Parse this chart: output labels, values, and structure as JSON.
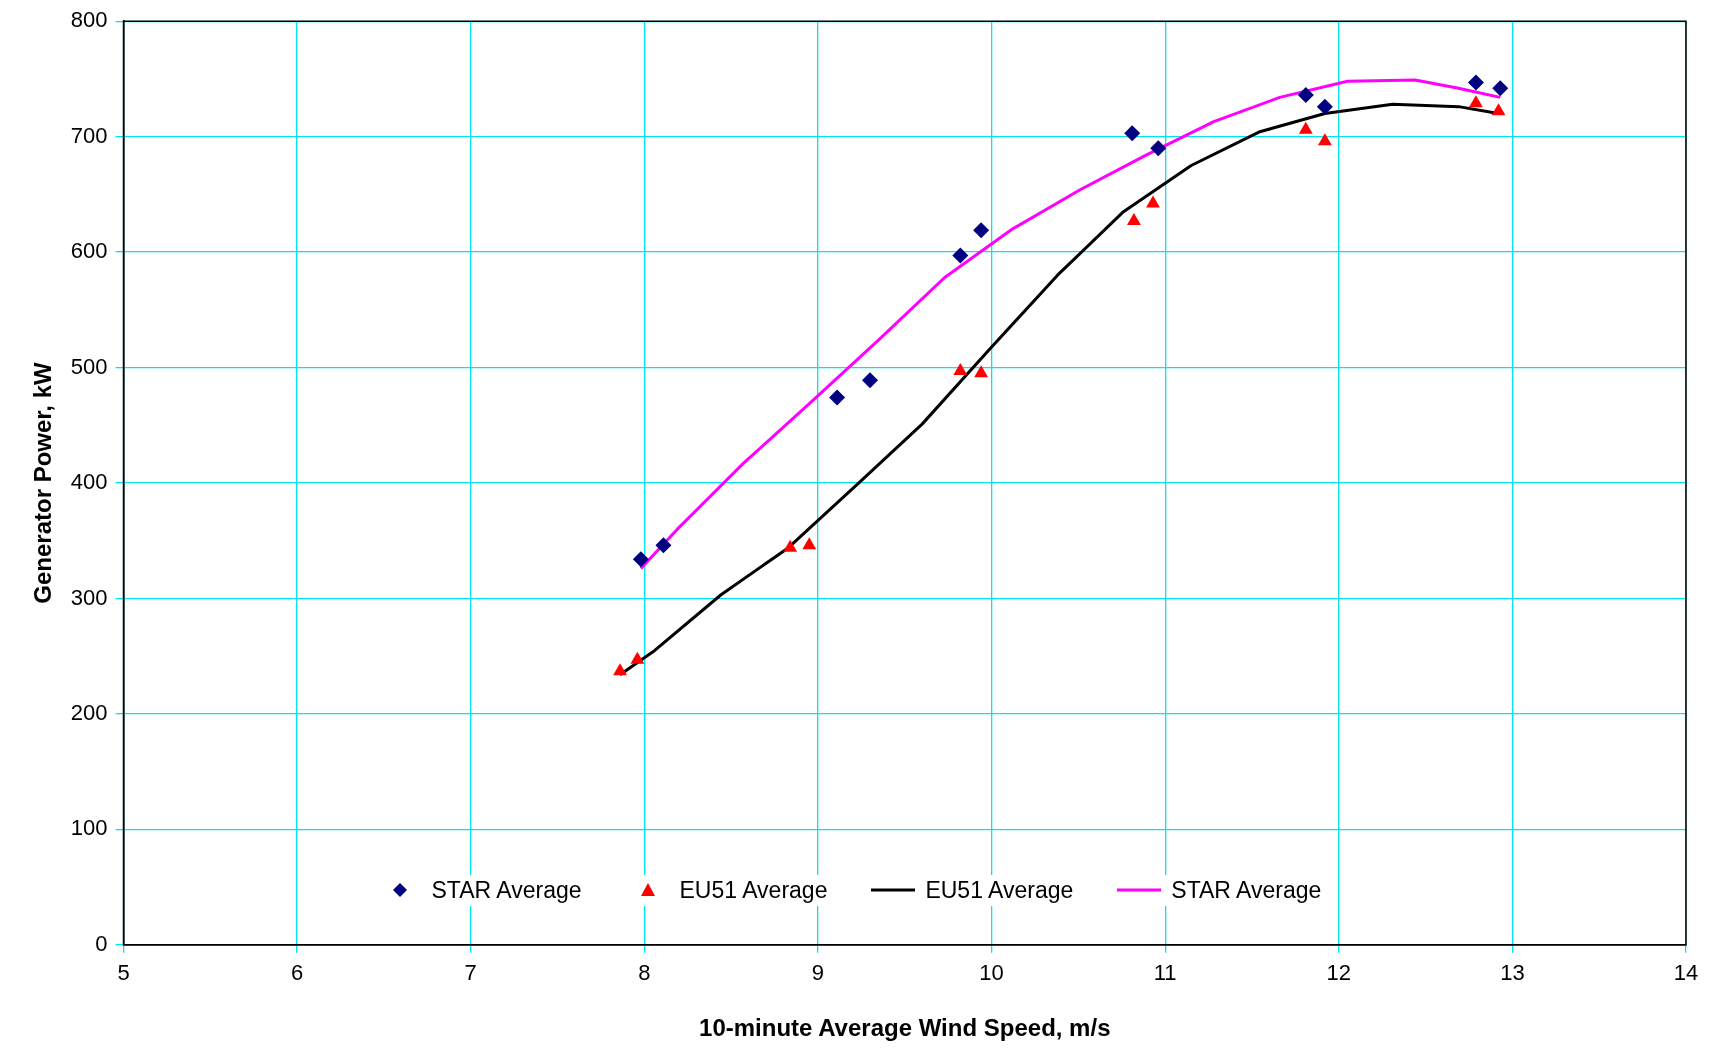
{
  "chart_data": {
    "type": "scatter",
    "xlabel": "10-minute Average Wind Speed, m/s",
    "ylabel": "Generator Power, kW",
    "xlim": [
      5,
      14
    ],
    "xticks": [
      5,
      6,
      7,
      8,
      9,
      10,
      11,
      12,
      13,
      14
    ],
    "ylim": [
      0,
      800
    ],
    "yticks": [
      0,
      100,
      200,
      300,
      400,
      500,
      600,
      700,
      800
    ],
    "grid": true,
    "legend": "bottom",
    "series": [
      {
        "name": "STAR Average",
        "marker": "diamond",
        "color": "#000080",
        "x": [
          7.98,
          8.11,
          9.11,
          9.3,
          9.82,
          9.94,
          10.81,
          10.96,
          11.81,
          11.92,
          12.79,
          12.93
        ],
        "values": [
          334,
          346,
          474,
          489,
          597,
          619,
          703,
          690,
          736,
          726,
          747,
          742
        ]
      },
      {
        "name": "EU51 Average",
        "marker": "triangle",
        "color": "#ff0000",
        "x": [
          7.86,
          7.96,
          8.84,
          8.95,
          9.82,
          9.94,
          10.82,
          10.93,
          11.81,
          11.92,
          12.79,
          12.92
        ],
        "values": [
          237,
          247,
          344,
          346,
          497,
          495,
          627,
          642,
          706,
          696,
          729,
          722
        ]
      },
      {
        "name": "EU51 Average",
        "type": "line",
        "marker": "none",
        "color": "#000000",
        "x": [
          7.86,
          8.06,
          8.44,
          8.83,
          9.22,
          9.6,
          9.99,
          10.38,
          10.76,
          11.15,
          11.54,
          11.92,
          12.31,
          12.69,
          12.92
        ],
        "values": [
          234,
          255,
          303,
          344,
          398,
          451,
          516,
          580,
          635,
          675,
          704,
          720,
          728,
          726,
          720
        ]
      },
      {
        "name": "STAR Average",
        "type": "line",
        "marker": "none",
        "color": "#ff00ff",
        "x": [
          7.98,
          8.19,
          8.57,
          8.96,
          9.35,
          9.73,
          10.12,
          10.51,
          10.89,
          11.28,
          11.66,
          12.05,
          12.44,
          12.69,
          12.93
        ],
        "values": [
          326,
          360,
          417,
          470,
          524,
          578,
          620,
          654,
          684,
          713,
          734,
          748,
          749,
          742,
          734
        ]
      }
    ]
  }
}
